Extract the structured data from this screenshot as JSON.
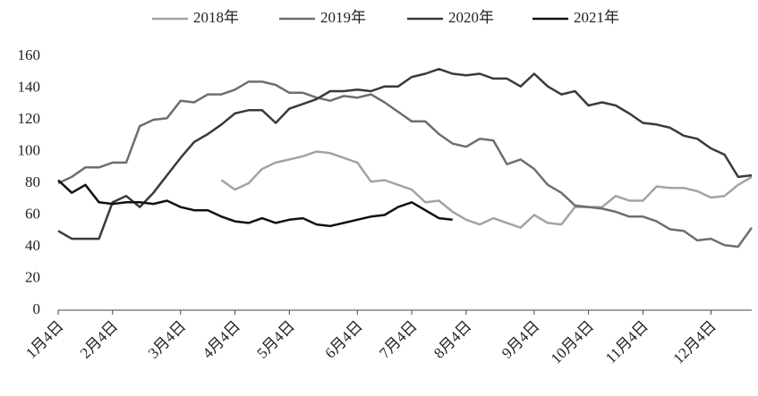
{
  "chart_data": {
    "type": "line",
    "categories": [
      "1月4日",
      null,
      null,
      null,
      "2月4日",
      null,
      null,
      null,
      null,
      "3月4日",
      null,
      null,
      null,
      "4月4日",
      null,
      null,
      null,
      "5月4日",
      null,
      null,
      null,
      null,
      "6月4日",
      null,
      null,
      null,
      "7月4日",
      null,
      null,
      null,
      "8月4日",
      null,
      null,
      null,
      null,
      "9月4日",
      null,
      null,
      null,
      "10月4日",
      null,
      null,
      null,
      "11月4日",
      null,
      null,
      null,
      null,
      "12月4日",
      null,
      null,
      null
    ],
    "series": [
      {
        "name": "2018年",
        "color": "#a3a3a3",
        "values": [
          null,
          null,
          null,
          null,
          null,
          null,
          null,
          null,
          null,
          null,
          null,
          null,
          82,
          76,
          80,
          89,
          93,
          95,
          97,
          100,
          99,
          96,
          93,
          81,
          82,
          79,
          76,
          68,
          69,
          62,
          57,
          54,
          58,
          55,
          52,
          60,
          55,
          54,
          65,
          65,
          65,
          72,
          69,
          69,
          78,
          77,
          77,
          75,
          71,
          72,
          79,
          84
        ]
      },
      {
        "name": "2019年",
        "color": "#6e6e6e",
        "values": [
          80,
          84,
          90,
          90,
          93,
          93,
          116,
          120,
          121,
          132,
          131,
          136,
          136,
          139,
          144,
          144,
          142,
          137,
          137,
          134,
          132,
          135,
          134,
          136,
          131,
          125,
          119,
          119,
          111,
          105,
          103,
          108,
          107,
          92,
          95,
          89,
          79,
          74,
          66,
          65,
          64,
          62,
          59,
          59,
          56,
          51,
          50,
          44,
          45,
          41,
          40,
          52
        ]
      },
      {
        "name": "2020年",
        "color": "#3a3a3a",
        "values": [
          50,
          45,
          45,
          45,
          68,
          72,
          65,
          74,
          85,
          96,
          106,
          111,
          117,
          124,
          126,
          126,
          118,
          127,
          130,
          133,
          138,
          138,
          139,
          138,
          141,
          141,
          147,
          149,
          152,
          149,
          148,
          149,
          146,
          146,
          141,
          149,
          141,
          136,
          138,
          129,
          131,
          129,
          124,
          118,
          117,
          115,
          110,
          108,
          102,
          98,
          84,
          85
        ]
      },
      {
        "name": "2021年",
        "color": "#111111",
        "values": [
          82,
          74,
          79,
          68,
          67,
          68,
          68,
          67,
          69,
          65,
          63,
          63,
          59,
          56,
          55,
          58,
          55,
          57,
          58,
          54,
          53,
          55,
          57,
          59,
          60,
          65,
          68,
          63,
          58,
          57,
          null,
          null,
          null,
          null,
          null,
          null,
          null,
          null,
          null,
          null,
          null,
          null,
          null,
          null,
          null,
          null,
          null,
          null,
          null,
          null,
          null,
          null
        ]
      }
    ],
    "ylim": [
      0,
      160
    ],
    "yticks": [
      0,
      20,
      40,
      60,
      80,
      100,
      120,
      140,
      160
    ],
    "grid": false,
    "legend": "top"
  }
}
